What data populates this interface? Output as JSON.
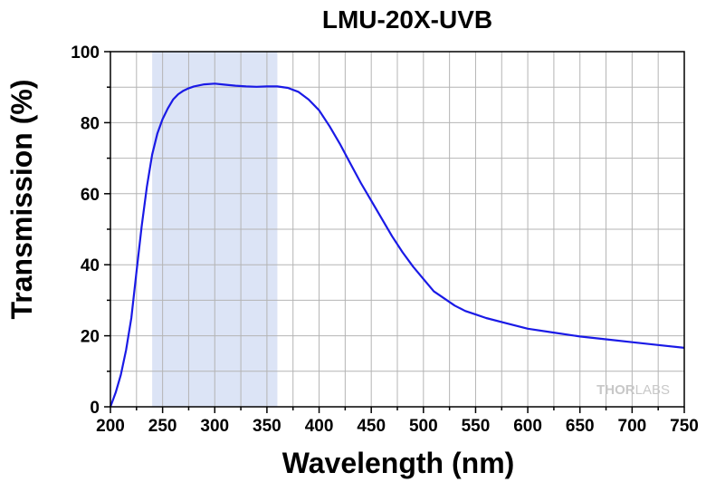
{
  "chart_data": {
    "type": "line",
    "title": "LMU-20X-UVB",
    "xlabel": "Wavelength (nm)",
    "ylabel": "Transmission (%)",
    "xlim": [
      200,
      750
    ],
    "ylim": [
      0,
      100
    ],
    "x_ticks": [
      200,
      250,
      300,
      350,
      400,
      450,
      500,
      550,
      600,
      650,
      700,
      750
    ],
    "y_ticks": [
      0,
      20,
      40,
      60,
      80,
      100
    ],
    "x_minor_step": 25,
    "y_minor_step": 10,
    "grid": true,
    "highlight_band": {
      "x_range": [
        240,
        360
      ],
      "color": "#dce4f6"
    },
    "series": [
      {
        "color": "#1a1ae6",
        "x": [
          200,
          205,
          210,
          215,
          220,
          225,
          230,
          235,
          240,
          245,
          250,
          255,
          260,
          265,
          270,
          275,
          280,
          290,
          300,
          310,
          320,
          330,
          340,
          350,
          360,
          370,
          380,
          390,
          400,
          410,
          420,
          430,
          440,
          450,
          460,
          470,
          480,
          490,
          500,
          510,
          520,
          530,
          540,
          550,
          560,
          580,
          600,
          625,
          650,
          675,
          700,
          725,
          750
        ],
        "y": [
          0,
          4,
          9,
          16,
          25,
          38,
          51,
          62,
          71,
          77,
          81,
          84,
          86.5,
          88,
          89,
          89.7,
          90.2,
          90.8,
          91,
          90.7,
          90.4,
          90.2,
          90.1,
          90.2,
          90.2,
          89.8,
          88.7,
          86.5,
          83.5,
          79,
          74,
          68.5,
          63,
          58,
          53,
          48,
          43.5,
          39.5,
          36,
          32.5,
          30.5,
          28.5,
          27,
          26,
          25,
          23.5,
          22,
          20.9,
          19.8,
          19,
          18.2,
          17.4,
          16.6
        ]
      }
    ]
  },
  "watermark": {
    "bold_part": "THOR",
    "light_part": "LABS"
  }
}
